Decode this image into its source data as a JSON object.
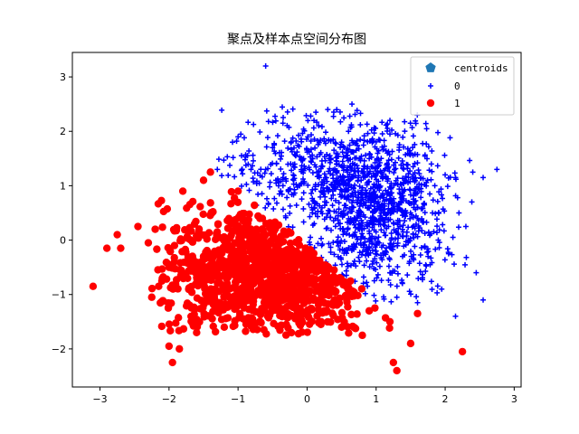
{
  "chart_data": {
    "type": "scatter",
    "title": "聚点及样本点空间分布图",
    "xlabel": "",
    "ylabel": "",
    "xlim": [
      -3.4,
      3.1
    ],
    "ylim": [
      -2.7,
      3.45
    ],
    "xticks": [
      -3,
      -2,
      -1,
      0,
      1,
      2,
      3
    ],
    "yticks": [
      -2,
      -1,
      0,
      1,
      2,
      3
    ],
    "grid": false,
    "legend_position": "top-right",
    "series": [
      {
        "name": "centroids",
        "marker": "pentagon",
        "color": "#1f77b4",
        "points": []
      },
      {
        "name": "0",
        "marker": "plus",
        "color": "#0000ff",
        "points": [
          [
            -0.6,
            3.2
          ],
          [
            0.65,
            2.5
          ],
          [
            0.3,
            2.4
          ],
          [
            1.2,
            2.2
          ],
          [
            1.2,
            1.95
          ],
          [
            -0.35,
            2.15
          ],
          [
            -0.95,
            1.55
          ],
          [
            -1.3,
            1.3
          ],
          [
            2.75,
            1.3
          ],
          [
            2.55,
            1.15
          ],
          [
            2.4,
            1.25
          ],
          [
            2.15,
            1.15
          ],
          [
            1.85,
            1.0
          ],
          [
            2.2,
            0.5
          ],
          [
            1.9,
            0.0
          ],
          [
            2.05,
            -0.25
          ],
          [
            2.3,
            0.25
          ],
          [
            2.45,
            -0.6
          ],
          [
            2.55,
            -1.1
          ],
          [
            2.15,
            -1.4
          ],
          [
            1.95,
            -0.9
          ],
          [
            1.6,
            -1.15
          ],
          [
            1.3,
            -1.05
          ],
          [
            0.6,
            2.0
          ],
          [
            0.1,
            2.2
          ],
          [
            -0.5,
            1.7
          ],
          [
            1.5,
            1.6
          ],
          [
            1.8,
            1.4
          ],
          [
            2.0,
            1.2
          ],
          [
            1.4,
            0.9
          ],
          [
            1.6,
            0.4
          ],
          [
            1.2,
            -0.6
          ],
          [
            -0.2,
            1.2
          ],
          [
            0.2,
            0.9
          ],
          [
            0.5,
            0.5
          ],
          [
            0.8,
            0.2
          ],
          [
            1.0,
            -0.2
          ],
          [
            0.9,
            1.5
          ],
          [
            0.5,
            1.8
          ],
          [
            -0.6,
            1.3
          ]
        ],
        "region": {
          "x": [
            -1.5,
            2.8
          ],
          "y": [
            -1.45,
            2.5
          ]
        }
      },
      {
        "name": "1",
        "marker": "circle",
        "color": "#ff0000",
        "points": [
          [
            -3.1,
            -0.85
          ],
          [
            -2.9,
            -0.15
          ],
          [
            -2.75,
            0.1
          ],
          [
            -2.7,
            -0.15
          ],
          [
            -2.45,
            0.25
          ],
          [
            -2.3,
            -0.05
          ],
          [
            -2.25,
            -1.05
          ],
          [
            -2.15,
            -0.85
          ],
          [
            -2.0,
            -1.95
          ],
          [
            -1.95,
            -2.25
          ],
          [
            -1.85,
            -2.0
          ],
          [
            2.25,
            -2.05
          ],
          [
            1.3,
            -2.4
          ],
          [
            1.25,
            -2.25
          ],
          [
            0.8,
            -1.75
          ],
          [
            1.6,
            -1.35
          ],
          [
            1.5,
            -1.9
          ],
          [
            -1.4,
            1.25
          ],
          [
            -1.8,
            0.9
          ],
          [
            -1.5,
            1.1
          ],
          [
            -2.2,
            0.2
          ],
          [
            -2.0,
            -0.5
          ],
          [
            -1.6,
            -1.7
          ],
          [
            -1.2,
            -1.6
          ],
          [
            -0.8,
            -1.5
          ],
          [
            -0.3,
            -1.55
          ],
          [
            0.2,
            -1.55
          ],
          [
            0.5,
            -1.6
          ],
          [
            -1.0,
            0.9
          ],
          [
            -0.9,
            -0.6
          ],
          [
            -0.5,
            -0.7
          ],
          [
            0.0,
            -1.0
          ],
          [
            0.4,
            -1.1
          ],
          [
            0.9,
            -1.3
          ],
          [
            1.2,
            -1.5
          ],
          [
            -1.5,
            -0.3
          ],
          [
            -1.7,
            -1.2
          ],
          [
            -1.1,
            0.3
          ],
          [
            -0.3,
            0.1
          ],
          [
            -0.5,
            -1.2
          ]
        ],
        "region": {
          "x": [
            -2.2,
            1.6
          ],
          "y": [
            -1.75,
            1.25
          ]
        }
      }
    ]
  }
}
